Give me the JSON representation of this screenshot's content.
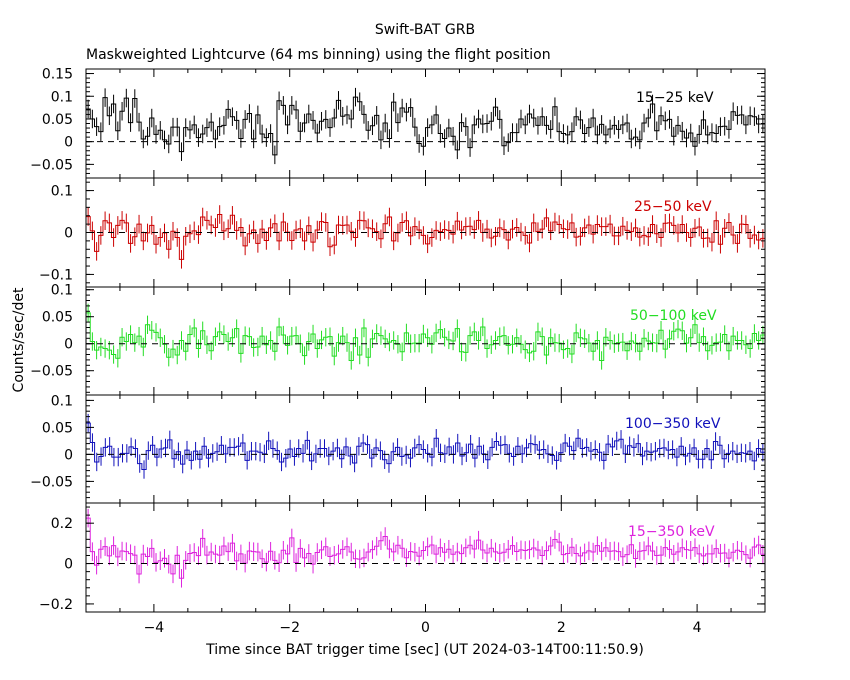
{
  "chart_data": {
    "type": "line",
    "title": "Swift-BAT GRB",
    "subtitle": "Maskweighted Lightcurve (64 ms binning) using the flight position",
    "xlabel": "Time since BAT trigger time [sec] (UT 2024-03-14T00:11:50.9)",
    "ylabel": "Counts/sec/det",
    "xlim": [
      -5.0,
      5.0
    ],
    "x_ticks": [
      -4,
      -2,
      0,
      2,
      4
    ],
    "x_tick_labels": [
      "−4",
      "−2",
      "0",
      "2",
      "4"
    ],
    "bin_width": 0.064,
    "panels": [
      {
        "name": "15−25 keV",
        "color": "#000000",
        "ylim": [
          -0.08,
          0.16
        ],
        "y_ticks": [
          -0.05,
          0,
          0.05,
          0.1,
          0.15
        ],
        "y_tick_labels": [
          "−0.05",
          "0",
          "0.05",
          "0.1",
          "0.15"
        ],
        "values": [
          0.072,
          0.05,
          0.033,
          0.022,
          0.097,
          0.057,
          0.083,
          0.024,
          0.067,
          0.096,
          0.042,
          0.095,
          0.043,
          0.006,
          0.012,
          0.052,
          0.016,
          0.025,
          0.004,
          -0.005,
          0.032,
          0.032,
          -0.022,
          0.031,
          0.026,
          0.037,
          0.009,
          0.017,
          0.031,
          0.043,
          0.006,
          0.033,
          0.036,
          0.071,
          0.055,
          0.047,
          0.007,
          0.049,
          0.062,
          0.006,
          0.059,
          0.017,
          0.009,
          0.018,
          -0.029,
          0.09,
          0.08,
          0.037,
          0.08,
          0.07,
          0.023,
          0.041,
          0.061,
          0.047,
          0.019,
          0.045,
          0.049,
          0.031,
          0.052,
          0.091,
          0.056,
          0.059,
          0.05,
          0.098,
          0.088,
          0.06,
          0.025,
          0.035,
          0.058,
          0.004,
          0.041,
          0.007,
          0.087,
          0.042,
          0.074,
          0.065,
          0.075,
          0.032,
          -0.004,
          -0.01,
          0.031,
          0.037,
          0.059,
          0.018,
          0.007,
          0.03,
          0.012,
          -0.018,
          0.042,
          0.033,
          -0.013,
          0.037,
          0.05,
          0.039,
          0.04,
          0.045,
          0.076,
          0.049,
          -0.009,
          -0.002,
          0.02,
          0.02,
          0.05,
          0.037,
          0.061,
          0.052,
          0.036,
          0.055,
          0.036,
          0.027,
          0.077,
          0.022,
          0.018,
          0.015,
          0.022,
          0.055,
          0.048,
          0.018,
          0.031,
          0.052,
          0.015,
          0.038,
          0.015,
          0.028,
          0.036,
          0.027,
          0.037,
          0.041,
          0.006,
          0.01,
          0.004,
          0.041,
          0.052,
          0.083,
          0.024,
          0.057,
          0.046,
          0.049,
          0.012,
          0.036,
          0.023,
          0.008,
          0.019,
          -0.01,
          0.016,
          0.048,
          0.015,
          0.02,
          0.018,
          0.033,
          0.034,
          0.027,
          0.066,
          0.058,
          0.059,
          0.037,
          0.057,
          0.055,
          0.039,
          0.039
        ]
      },
      {
        "name": "25−50 keV",
        "color": "#cc0000",
        "ylim": [
          -0.13,
          0.13
        ],
        "y_ticks": [
          -0.1,
          0,
          0.1
        ],
        "y_tick_labels": [
          "−0.1",
          "0",
          "0.1"
        ],
        "values": [
          0.038,
          0.004,
          -0.045,
          -0.007,
          0.028,
          0.023,
          -0.012,
          0.017,
          0.029,
          0.023,
          -0.026,
          -0.01,
          0.02,
          -0.02,
          -0.001,
          0.017,
          -0.028,
          -0.012,
          -0.001,
          -0.04,
          0.003,
          -0.012,
          -0.064,
          -0.009,
          -0.003,
          0.004,
          -0.005,
          0.037,
          0.029,
          0.018,
          0.012,
          0.043,
          0.004,
          0.009,
          0.041,
          0.005,
          0.012,
          -0.032,
          -0.003,
          0.006,
          -0.026,
          0.008,
          -0.019,
          0.011,
          0.021,
          -0.02,
          0.025,
          0.001,
          -0.019,
          0.006,
          0.009,
          -0.02,
          0.016,
          -0.023,
          0.006,
          0.026,
          0.024,
          -0.034,
          -0.03,
          0.018,
          0.017,
          0.018,
          0.003,
          -0.012,
          0.029,
          0.028,
          0.011,
          0.009,
          0.002,
          -0.015,
          0.021,
          0.037,
          -0.02,
          -0.001,
          0.024,
          0.028,
          -0.008,
          0.014,
          0.006,
          -0.007,
          -0.027,
          -0.012,
          0.005,
          0.002,
          0.007,
          0.005,
          -0.004,
          0.027,
          0.006,
          0.014,
          0.015,
          0.007,
          0.029,
          0.0,
          0.008,
          -0.013,
          -0.009,
          0.011,
          0.007,
          -0.018,
          0.008,
          0.012,
          0.001,
          -0.007,
          -0.025,
          0.023,
          0.002,
          0.008,
          0.035,
          0.004,
          0.025,
          0.019,
          0.009,
          0.007,
          0.023,
          -0.011,
          -0.009,
          0.011,
          0.018,
          -0.004,
          0.019,
          0.014,
          0.014,
          0.02,
          -0.008,
          -0.008,
          0.015,
          0.005,
          0.002,
          0.011,
          -0.011,
          -0.007,
          -0.01,
          0.019,
          -0.003,
          -0.012,
          0.022,
          0.023,
          0.017,
          -0.001,
          0.019,
          -0.0,
          -0.012,
          0.01,
          0.013,
          -0.014,
          -0.013,
          -0.023,
          0.028,
          -0.028,
          0.01,
          0.024,
          -0.006,
          -0.026,
          0.02,
          0.019,
          -0.014,
          -0.006,
          -0.018,
          -0.014
        ]
      },
      {
        "name": "50−100 keV",
        "color": "#22dd22",
        "ylim": [
          -0.095,
          0.105
        ],
        "y_ticks": [
          -0.05,
          0,
          0.05,
          0.1
        ],
        "y_tick_labels": [
          "−0.05",
          "0",
          "0.05",
          "0.1"
        ],
        "values": [
          0.057,
          0.004,
          -0.012,
          -0.006,
          -0.009,
          -0.012,
          -0.02,
          -0.027,
          0.012,
          0.004,
          0.017,
          0.002,
          0.014,
          -0.006,
          0.035,
          0.025,
          0.021,
          0.011,
          -0.001,
          -0.025,
          -0.01,
          -0.021,
          0.006,
          -0.014,
          0.017,
          0.029,
          -0.009,
          0.024,
          -0.002,
          -0.013,
          0.013,
          0.022,
          0.017,
          0.004,
          0.011,
          0.028,
          -0.018,
          0.015,
          0.013,
          -0.007,
          -0.006,
          0.014,
          -0.002,
          0.006,
          -0.014,
          0.031,
          0.016,
          -0.003,
          0.014,
          0.015,
          0.0,
          -0.022,
          0.004,
          0.018,
          -0.009,
          0.007,
          0.012,
          0.013,
          -0.023,
          0.002,
          0.014,
          0.002,
          -0.031,
          0.011,
          -0.021,
          0.029,
          -0.025,
          0.009,
          0.019,
          0.015,
          0.009,
          0.003,
          0.006,
          -0.001,
          -0.015,
          0.02,
          -0.0,
          0.001,
          0.001,
          0.018,
          0.011,
          -0.001,
          0.02,
          0.026,
          0.012,
          0.007,
          0.005,
          0.028,
          -0.015,
          -0.016,
          0.015,
          0.022,
          0.006,
          0.031,
          -0.009,
          -0.002,
          0.006,
          0.013,
          0.015,
          -0.003,
          -0.001,
          0.011,
          -0.001,
          -0.011,
          -0.017,
          -0.014,
          0.022,
          0.013,
          -0.021,
          0.011,
          0.002,
          0.001,
          -0.011,
          -0.009,
          -0.019,
          0.02,
          0.011,
          0.009,
          0.001,
          -0.014,
          0.006,
          -0.031,
          0.012,
          0.006,
          -0.0,
          0.002,
          0.003,
          -0.013,
          0.005,
          0.001,
          -0.014,
          0.01,
          0.005,
          0.002,
          0.001,
          0.025,
          -0.01,
          0.009,
          0.023,
          0.027,
          0.024,
          0.001,
          0.011,
          0.035,
          0.002,
          0.013,
          -0.013,
          -0.003,
          0.002,
          0.003,
          0.017,
          -0.013,
          0.014,
          0.006,
          0.006,
          -0.002,
          -0.009,
          0.019,
          0.006,
          0.016
        ]
      },
      {
        "name": "100−350 keV",
        "color": "#1111bb",
        "ylim": [
          -0.09,
          0.11
        ],
        "y_ticks": [
          -0.05,
          0,
          0.05,
          0.1
        ],
        "y_tick_labels": [
          "−0.05",
          "0",
          "0.05",
          "0.1"
        ],
        "values": [
          0.058,
          0.022,
          -0.014,
          -0.004,
          0.013,
          0.015,
          -0.005,
          -0.005,
          0.002,
          0.002,
          0.014,
          0.011,
          -0.017,
          -0.028,
          0.007,
          0.017,
          -0.005,
          0.01,
          0.012,
          0.027,
          -0.008,
          0.005,
          -0.018,
          0.008,
          -0.011,
          0.006,
          -0.009,
          0.015,
          -0.007,
          0.002,
          0.005,
          0.017,
          0.001,
          0.013,
          0.013,
          0.015,
          0.021,
          -0.011,
          0.006,
          0.006,
          0.004,
          0.001,
          0.025,
          0.011,
          0.007,
          -0.014,
          -0.007,
          0.01,
          -0.004,
          0.011,
          0.002,
          0.026,
          -0.012,
          0.001,
          0.011,
          0.011,
          -0.003,
          0.006,
          0.012,
          -0.008,
          0.014,
          -0.003,
          -0.016,
          0.015,
          0.021,
          0.018,
          -0.007,
          0.012,
          0.007,
          -0.01,
          -0.017,
          0.005,
          0.013,
          -0.004,
          -0.001,
          -0.007,
          0.012,
          0.018,
          0.009,
          0.002,
          -0.005,
          0.03,
          0.003,
          0.001,
          0.014,
          -0.0,
          0.021,
          -0.003,
          0.003,
          0.019,
          -0.007,
          0.015,
          0.001,
          -0.01,
          0.013,
          0.024,
          0.017,
          0.018,
          0.002,
          -0.004,
          0.015,
          0.001,
          0.012,
          0.02,
          0.018,
          0.008,
          0.009,
          0.001,
          -0.002,
          -0.011,
          0.003,
          0.021,
          0.015,
          0.007,
          0.03,
          0.011,
          0.013,
          0.006,
          0.009,
          0.004,
          -0.011,
          0.019,
          0.014,
          0.025,
          0.028,
          0.001,
          0.016,
          0.013,
          0.02,
          -0.003,
          0.006,
          0.004,
          0.006,
          0.011,
          0.012,
          0.008,
          0.009,
          -0.005,
          0.015,
          -0.003,
          0.002,
          0.012,
          -0.009,
          -0.009,
          0.011,
          -0.01,
          0.024,
          0.017,
          -0.008,
          0.002,
          0.006,
          0.001,
          0.003,
          0.002,
          0.006,
          -0.012,
          0.011,
          0.004
        ]
      },
      {
        "name": "15−350 keV",
        "color": "#dd22dd",
        "ylim": [
          -0.24,
          0.3
        ],
        "y_ticks": [
          -0.2,
          0,
          0.2
        ],
        "y_tick_labels": [
          "−0.2",
          "0",
          "0.2"
        ],
        "values": [
          0.225,
          0.059,
          -0.008,
          0.071,
          0.084,
          0.038,
          0.089,
          0.033,
          0.062,
          0.059,
          0.049,
          0.042,
          -0.052,
          0.047,
          0.035,
          0.075,
          0.006,
          0.014,
          0.026,
          -0.003,
          -0.051,
          0.041,
          -0.073,
          0.016,
          0.05,
          0.055,
          0.039,
          0.125,
          0.042,
          0.057,
          0.047,
          0.042,
          0.087,
          0.059,
          0.101,
          0.013,
          0.048,
          0.002,
          0.062,
          0.059,
          0.057,
          0.024,
          0.007,
          0.061,
          0.016,
          0.004,
          0.066,
          0.048,
          0.127,
          0.005,
          0.075,
          0.028,
          0.05,
          -0.003,
          0.055,
          0.068,
          0.083,
          0.035,
          0.041,
          0.048,
          0.07,
          0.083,
          0.057,
          0.024,
          0.022,
          0.028,
          0.057,
          0.069,
          0.086,
          0.113,
          0.134,
          0.072,
          0.058,
          0.091,
          0.076,
          0.029,
          0.06,
          0.056,
          0.037,
          0.065,
          0.083,
          0.092,
          0.047,
          0.078,
          0.056,
          0.071,
          0.046,
          0.057,
          0.049,
          0.078,
          0.091,
          0.072,
          0.116,
          0.067,
          0.052,
          0.076,
          0.058,
          0.051,
          0.056,
          0.071,
          0.089,
          0.06,
          0.068,
          0.065,
          0.069,
          0.077,
          0.067,
          0.04,
          0.064,
          0.087,
          0.119,
          0.106,
          0.044,
          0.05,
          0.081,
          0.05,
          0.038,
          0.053,
          0.063,
          0.057,
          0.089,
          0.061,
          0.078,
          0.061,
          0.063,
          0.059,
          0.034,
          0.044,
          0.093,
          0.025,
          0.061,
          0.064,
          0.087,
          0.062,
          0.04,
          0.042,
          0.079,
          0.07,
          0.046,
          0.058,
          0.078,
          0.069,
          0.066,
          0.079,
          0.048,
          0.038,
          0.048,
          0.048,
          0.074,
          0.051,
          0.052,
          0.027,
          0.056,
          0.066,
          0.06,
          0.044,
          0.027,
          0.082,
          0.092,
          0.046
        ]
      }
    ]
  }
}
